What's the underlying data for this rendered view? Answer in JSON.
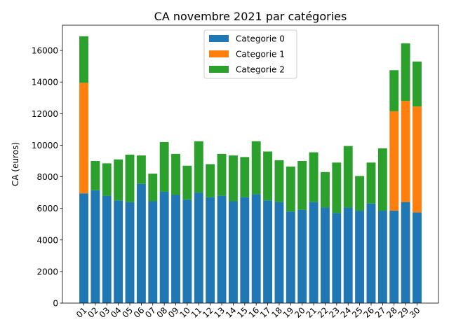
{
  "chart_data": {
    "type": "bar",
    "stacked": true,
    "title": "CA novembre 2021 par catégories",
    "xlabel": "",
    "ylabel": "CA (euros)",
    "ylim": [
      0,
      17600
    ],
    "yticks": [
      0,
      2000,
      4000,
      6000,
      8000,
      10000,
      12000,
      14000,
      16000
    ],
    "grid": false,
    "legend_position": "top-center",
    "categories": [
      "01",
      "02",
      "03",
      "04",
      "05",
      "06",
      "07",
      "08",
      "09",
      "10",
      "11",
      "12",
      "13",
      "14",
      "15",
      "16",
      "17",
      "18",
      "19",
      "20",
      "21",
      "22",
      "23",
      "24",
      "25",
      "26",
      "27",
      "28",
      "29",
      "30"
    ],
    "series": [
      {
        "name": "Categorie 0",
        "color": "#1f77b4",
        "values": [
          6950,
          7150,
          6800,
          6500,
          6400,
          7550,
          6450,
          7050,
          6850,
          6550,
          7000,
          6700,
          6800,
          6450,
          6700,
          6900,
          6500,
          6400,
          5800,
          5900,
          6400,
          6050,
          5700,
          6050,
          5850,
          6300,
          5850,
          5850,
          6400,
          5750
        ]
      },
      {
        "name": "Categorie 1",
        "color": "#ff7f0e",
        "values": [
          7000,
          0,
          0,
          0,
          0,
          0,
          0,
          0,
          0,
          0,
          0,
          0,
          0,
          0,
          0,
          0,
          0,
          0,
          0,
          0,
          0,
          0,
          0,
          0,
          0,
          0,
          0,
          6300,
          6400,
          6700
        ]
      },
      {
        "name": "Categorie 2",
        "color": "#2ca02c",
        "values": [
          2950,
          1850,
          2050,
          2600,
          3000,
          1800,
          1750,
          3150,
          2600,
          2150,
          3250,
          2100,
          2650,
          2900,
          2550,
          3350,
          3100,
          2650,
          2850,
          3100,
          3150,
          2250,
          3200,
          3900,
          2200,
          2600,
          3950,
          2600,
          3650,
          2850
        ]
      }
    ]
  }
}
